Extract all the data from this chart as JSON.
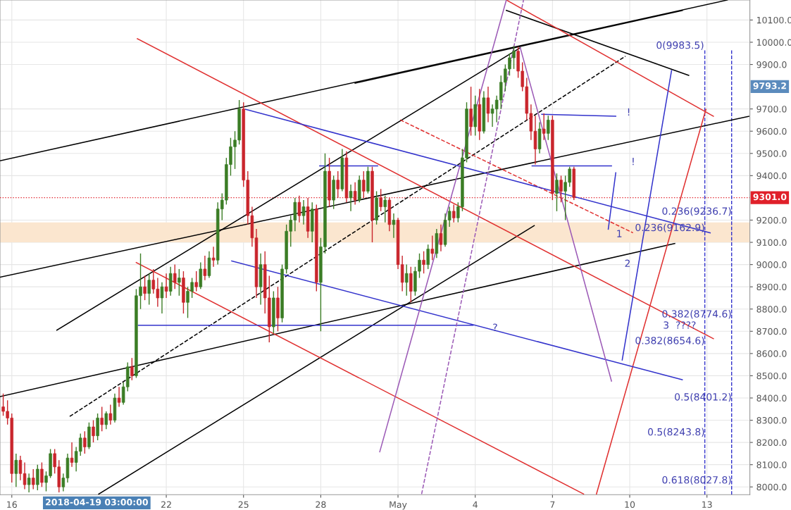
{
  "chart_data": {
    "type": "candlestick",
    "grid": true,
    "xlim": [
      "2018-04-15T13:00",
      "2018-05-14T16:00"
    ],
    "ylim": [
      7965,
      10190
    ],
    "xticks": [
      {
        "value": "2018-04-16",
        "label": "16"
      },
      {
        "value": "2018-04-22",
        "label": "22"
      },
      {
        "value": "2018-04-25",
        "label": "25"
      },
      {
        "value": "2018-04-28",
        "label": "28"
      },
      {
        "value": "2018-05-01",
        "label": "May"
      },
      {
        "value": "2018-05-04",
        "label": "4"
      },
      {
        "value": "2018-05-07",
        "label": "7"
      },
      {
        "value": "2018-05-10",
        "label": "10"
      },
      {
        "value": "2018-05-13",
        "label": "13"
      }
    ],
    "yticks": [
      {
        "value": 8000,
        "label": "8000.0"
      },
      {
        "value": 8100,
        "label": "8100.0"
      },
      {
        "value": 8200,
        "label": "8200.0"
      },
      {
        "value": 8300,
        "label": "8300.0"
      },
      {
        "value": 8400,
        "label": "8400.0"
      },
      {
        "value": 8500,
        "label": "8500.0"
      },
      {
        "value": 8600,
        "label": "8600.0"
      },
      {
        "value": 8700,
        "label": "8700.0"
      },
      {
        "value": 8800,
        "label": "8800.0"
      },
      {
        "value": 8900,
        "label": "8900.0"
      },
      {
        "value": 9000,
        "label": "9000.0"
      },
      {
        "value": 9100,
        "label": "9100.0"
      },
      {
        "value": 9200,
        "label": "9200.0"
      },
      {
        "value": 9400,
        "label": "9400.0"
      },
      {
        "value": 9500,
        "label": "9500.0"
      },
      {
        "value": 9600,
        "label": "9600.0"
      },
      {
        "value": 9700,
        "label": "9700.0"
      },
      {
        "value": 9900,
        "label": "9900.0"
      },
      {
        "value": 10000,
        "label": "10000.0"
      },
      {
        "value": 10100,
        "label": "10100.0"
      }
    ],
    "x": [
      "2018-04-15T16:00",
      "2018-04-15T20:00",
      "2018-04-16T00:00",
      "2018-04-16T04:00",
      "2018-04-16T08:00",
      "2018-04-16T12:00",
      "2018-04-16T16:00",
      "2018-04-16T20:00",
      "2018-04-17T00:00",
      "2018-04-17T04:00",
      "2018-04-17T08:00",
      "2018-04-17T12:00",
      "2018-04-17T16:00",
      "2018-04-17T20:00",
      "2018-04-18T00:00",
      "2018-04-18T04:00",
      "2018-04-18T08:00",
      "2018-04-18T12:00",
      "2018-04-18T16:00",
      "2018-04-18T20:00",
      "2018-04-19T00:00",
      "2018-04-19T04:00",
      "2018-04-19T08:00",
      "2018-04-19T12:00",
      "2018-04-19T16:00",
      "2018-04-19T20:00",
      "2018-04-20T00:00",
      "2018-04-20T04:00",
      "2018-04-20T08:00",
      "2018-04-20T12:00",
      "2018-04-20T16:00",
      "2018-04-20T20:00",
      "2018-04-21T00:00",
      "2018-04-21T04:00",
      "2018-04-21T08:00",
      "2018-04-21T12:00",
      "2018-04-21T16:00",
      "2018-04-21T20:00",
      "2018-04-22T00:00",
      "2018-04-22T04:00",
      "2018-04-22T08:00",
      "2018-04-22T12:00",
      "2018-04-22T16:00",
      "2018-04-22T20:00",
      "2018-04-23T00:00",
      "2018-04-23T04:00",
      "2018-04-23T08:00",
      "2018-04-23T12:00",
      "2018-04-23T16:00",
      "2018-04-23T20:00",
      "2018-04-24T00:00",
      "2018-04-24T04:00",
      "2018-04-24T08:00",
      "2018-04-24T12:00",
      "2018-04-24T16:00",
      "2018-04-24T20:00",
      "2018-04-25T00:00",
      "2018-04-25T04:00",
      "2018-04-25T08:00",
      "2018-04-25T12:00",
      "2018-04-25T16:00",
      "2018-04-25T20:00",
      "2018-04-26T00:00",
      "2018-04-26T04:00",
      "2018-04-26T08:00",
      "2018-04-26T12:00",
      "2018-04-26T16:00",
      "2018-04-26T20:00",
      "2018-04-27T00:00",
      "2018-04-27T04:00",
      "2018-04-27T08:00",
      "2018-04-27T12:00",
      "2018-04-27T16:00",
      "2018-04-27T20:00",
      "2018-04-28T00:00",
      "2018-04-28T04:00",
      "2018-04-28T08:00",
      "2018-04-28T12:00",
      "2018-04-28T16:00",
      "2018-04-28T20:00",
      "2018-04-29T00:00",
      "2018-04-29T04:00",
      "2018-04-29T08:00",
      "2018-04-29T12:00",
      "2018-04-29T16:00",
      "2018-04-29T20:00",
      "2018-04-30T00:00",
      "2018-04-30T04:00",
      "2018-04-30T08:00",
      "2018-04-30T12:00",
      "2018-04-30T16:00",
      "2018-04-30T20:00",
      "2018-05-01T00:00",
      "2018-05-01T04:00",
      "2018-05-01T08:00",
      "2018-05-01T12:00",
      "2018-05-01T16:00",
      "2018-05-01T20:00",
      "2018-05-02T00:00",
      "2018-05-02T04:00",
      "2018-05-02T08:00",
      "2018-05-02T12:00",
      "2018-05-02T16:00",
      "2018-05-02T20:00",
      "2018-05-03T00:00",
      "2018-05-03T04:00",
      "2018-05-03T08:00",
      "2018-05-03T12:00",
      "2018-05-03T16:00",
      "2018-05-03T20:00",
      "2018-05-04T00:00",
      "2018-05-04T04:00",
      "2018-05-04T08:00",
      "2018-05-04T12:00",
      "2018-05-04T16:00",
      "2018-05-04T20:00",
      "2018-05-05T00:00",
      "2018-05-05T04:00",
      "2018-05-05T08:00",
      "2018-05-05T12:00",
      "2018-05-05T16:00",
      "2018-05-05T20:00",
      "2018-05-06T00:00",
      "2018-05-06T04:00",
      "2018-05-06T08:00",
      "2018-05-06T12:00",
      "2018-05-06T16:00",
      "2018-05-06T20:00",
      "2018-05-07T00:00",
      "2018-05-07T04:00",
      "2018-05-07T08:00",
      "2018-05-07T12:00",
      "2018-05-07T16:00",
      "2018-05-07T20:00"
    ],
    "ohlc": [
      [
        8360,
        8420,
        8320,
        8340
      ],
      [
        8340,
        8390,
        8280,
        8310
      ],
      [
        8310,
        8330,
        8020,
        8060
      ],
      [
        8060,
        8150,
        8000,
        8120
      ],
      [
        8120,
        8140,
        8030,
        8060
      ],
      [
        8060,
        8110,
        7990,
        8010
      ],
      [
        8010,
        8060,
        7975,
        8040
      ],
      [
        8040,
        8080,
        7990,
        8010
      ],
      [
        8010,
        8100,
        7985,
        8080
      ],
      [
        8080,
        8110,
        8000,
        8020
      ],
      [
        8020,
        8070,
        7980,
        8050
      ],
      [
        8050,
        8170,
        8040,
        8150
      ],
      [
        8150,
        8170,
        8060,
        8090
      ],
      [
        8090,
        8120,
        7975,
        8000
      ],
      [
        8000,
        8060,
        7980,
        8040
      ],
      [
        8040,
        8150,
        8020,
        8130
      ],
      [
        8130,
        8200,
        8090,
        8110
      ],
      [
        8110,
        8180,
        8070,
        8160
      ],
      [
        8160,
        8240,
        8140,
        8220
      ],
      [
        8220,
        8250,
        8150,
        8180
      ],
      [
        8180,
        8290,
        8170,
        8270
      ],
      [
        8270,
        8300,
        8200,
        8230
      ],
      [
        8230,
        8330,
        8210,
        8310
      ],
      [
        8310,
        8360,
        8250,
        8280
      ],
      [
        8280,
        8340,
        8260,
        8330
      ],
      [
        8330,
        8370,
        8280,
        8300
      ],
      [
        8300,
        8420,
        8290,
        8400
      ],
      [
        8400,
        8450,
        8360,
        8380
      ],
      [
        8380,
        8470,
        8370,
        8450
      ],
      [
        8450,
        8560,
        8430,
        8540
      ],
      [
        8540,
        8580,
        8480,
        8500
      ],
      [
        8500,
        8890,
        8490,
        8860
      ],
      [
        8860,
        9050,
        8800,
        8900
      ],
      [
        8900,
        8950,
        8840,
        8870
      ],
      [
        8870,
        8960,
        8820,
        8930
      ],
      [
        8930,
        8980,
        8870,
        8890
      ],
      [
        8890,
        8940,
        8810,
        8850
      ],
      [
        8850,
        8920,
        8780,
        8900
      ],
      [
        8900,
        8960,
        8850,
        8880
      ],
      [
        8880,
        8990,
        8860,
        8960
      ],
      [
        8960,
        9000,
        8890,
        8920
      ],
      [
        8920,
        8980,
        8860,
        8940
      ],
      [
        8940,
        8970,
        8780,
        8830
      ],
      [
        8830,
        8900,
        8760,
        8880
      ],
      [
        8880,
        8940,
        8850,
        8920
      ],
      [
        8920,
        8970,
        8880,
        8900
      ],
      [
        8900,
        9010,
        8890,
        8980
      ],
      [
        8980,
        9040,
        8930,
        8950
      ],
      [
        8950,
        9060,
        8940,
        9030
      ],
      [
        9030,
        9080,
        8990,
        9020
      ],
      [
        9020,
        9280,
        9000,
        9250
      ],
      [
        9250,
        9320,
        9200,
        9290
      ],
      [
        9290,
        9480,
        9270,
        9450
      ],
      [
        9450,
        9570,
        9400,
        9530
      ],
      [
        9530,
        9600,
        9430,
        9560
      ],
      [
        9560,
        9740,
        9540,
        9700
      ],
      [
        9700,
        9730,
        9350,
        9380
      ],
      [
        9380,
        9420,
        9180,
        9220
      ],
      [
        9220,
        9260,
        9080,
        9120
      ],
      [
        9120,
        9160,
        8850,
        8900
      ],
      [
        8900,
        9050,
        8820,
        9000
      ],
      [
        9000,
        9060,
        8780,
        8850
      ],
      [
        8850,
        8950,
        8650,
        8720
      ],
      [
        8720,
        8880,
        8690,
        8850
      ],
      [
        8850,
        8900,
        8700,
        8760
      ],
      [
        8760,
        9000,
        8740,
        8980
      ],
      [
        8980,
        9180,
        8960,
        9150
      ],
      [
        9150,
        9220,
        9080,
        9200
      ],
      [
        9200,
        9300,
        9150,
        9280
      ],
      [
        9280,
        9310,
        9190,
        9220
      ],
      [
        9220,
        9290,
        9180,
        9260
      ],
      [
        9260,
        9300,
        9120,
        9150
      ],
      [
        9150,
        9280,
        9100,
        9250
      ],
      [
        9250,
        9270,
        8880,
        8920
      ],
      [
        8920,
        9120,
        8700,
        9080
      ],
      [
        9080,
        9500,
        9050,
        9420
      ],
      [
        9420,
        9480,
        9260,
        9290
      ],
      [
        9290,
        9400,
        9250,
        9380
      ],
      [
        9380,
        9420,
        9300,
        9340
      ],
      [
        9340,
        9520,
        9330,
        9480
      ],
      [
        9480,
        9510,
        9280,
        9300
      ],
      [
        9300,
        9360,
        9240,
        9330
      ],
      [
        9330,
        9370,
        9270,
        9290
      ],
      [
        9290,
        9400,
        9280,
        9380
      ],
      [
        9380,
        9420,
        9300,
        9330
      ],
      [
        9330,
        9440,
        9320,
        9420
      ],
      [
        9420,
        9440,
        9100,
        9200
      ],
      [
        9200,
        9330,
        9180,
        9300
      ],
      [
        9300,
        9340,
        9240,
        9260
      ],
      [
        9260,
        9310,
        9190,
        9290
      ],
      [
        9290,
        9300,
        9150,
        9180
      ],
      [
        9180,
        9230,
        9120,
        9200
      ],
      [
        9200,
        9210,
        8980,
        9000
      ],
      [
        9000,
        9040,
        8880,
        8920
      ],
      [
        8920,
        9000,
        8860,
        8960
      ],
      [
        8960,
        8990,
        8830,
        8880
      ],
      [
        8880,
        8990,
        8860,
        8970
      ],
      [
        8970,
        9050,
        8940,
        9020
      ],
      [
        9020,
        9060,
        8960,
        9000
      ],
      [
        9000,
        9090,
        8980,
        9070
      ],
      [
        9070,
        9130,
        9020,
        9050
      ],
      [
        9050,
        9160,
        9030,
        9140
      ],
      [
        9140,
        9180,
        9060,
        9090
      ],
      [
        9090,
        9230,
        9080,
        9200
      ],
      [
        9200,
        9260,
        9170,
        9240
      ],
      [
        9240,
        9270,
        9190,
        9210
      ],
      [
        9210,
        9280,
        9190,
        9260
      ],
      [
        9260,
        9520,
        9240,
        9480
      ],
      [
        9480,
        9730,
        9460,
        9700
      ],
      [
        9700,
        9800,
        9580,
        9620
      ],
      [
        9620,
        9760,
        9580,
        9720
      ],
      [
        9720,
        9790,
        9560,
        9600
      ],
      [
        9600,
        9780,
        9590,
        9750
      ],
      [
        9750,
        9800,
        9640,
        9680
      ],
      [
        9680,
        9720,
        9620,
        9700
      ],
      [
        9700,
        9760,
        9640,
        9740
      ],
      [
        9740,
        9850,
        9700,
        9820
      ],
      [
        9820,
        9900,
        9780,
        9880
      ],
      [
        9880,
        9950,
        9850,
        9930
      ],
      [
        9930,
        9983.5,
        9880,
        9960
      ],
      [
        9960,
        9980,
        9840,
        9870
      ],
      [
        9870,
        9910,
        9780,
        9800
      ],
      [
        9800,
        9840,
        9650,
        9680
      ],
      [
        9680,
        9720,
        9560,
        9600
      ],
      [
        9600,
        9670,
        9450,
        9520
      ],
      [
        9520,
        9640,
        9500,
        9610
      ],
      [
        9610,
        9680,
        9560,
        9590
      ],
      [
        9590,
        9670,
        9560,
        9650
      ],
      [
        9650,
        9670,
        9290,
        9320
      ],
      [
        9320,
        9410,
        9240,
        9380
      ],
      [
        9380,
        9400,
        9280,
        9330
      ],
      [
        9330,
        9400,
        9200,
        9370
      ],
      [
        9370,
        9440,
        9350,
        9430
      ],
      [
        9430,
        9440,
        9290,
        9301
      ]
    ],
    "series": [
      {
        "type": "line",
        "x": [
          "2018-04-19T09:00",
          "2018-05-06T07:00"
        ],
        "values": [
          7968,
          9175
        ],
        "color": "#000000"
      },
      {
        "type": "line",
        "x": [
          "2018-04-17T18:00",
          "2018-05-05T18:00"
        ],
        "values": [
          8705,
          9975
        ],
        "color": "#000000"
      },
      {
        "type": "line",
        "x": [
          "2018-04-29T08:00",
          "2018-05-12T01:00"
        ],
        "values": [
          9816,
          10143
        ],
        "color": "#000000"
      },
      {
        "type": "line",
        "x": [
          "2018-05-05T05:00",
          "2018-05-12T07:00"
        ],
        "values": [
          10143,
          9851
        ],
        "color": "#000000"
      },
      {
        "type": "line",
        "x": [
          "2018-04-15T13:00",
          "2018-05-13T19:00"
        ],
        "values": [
          9467,
          10190
        ],
        "color": "#000000"
      },
      {
        "type": "line",
        "x": [
          "2018-04-15T13:00",
          "2018-05-14T15:00"
        ],
        "values": [
          8943,
          9667
        ],
        "color": "#000000"
      },
      {
        "type": "line",
        "x": [
          "2018-04-15T13:00",
          "2018-05-11T18:00"
        ],
        "values": [
          8406,
          9095
        ],
        "color": "#000000"
      },
      {
        "type": "line",
        "x": [
          "2018-04-18T06:00",
          "2018-05-09T20:00"
        ],
        "values": [
          8317,
          9937
        ],
        "color": "#000000",
        "line_style": "dashed"
      },
      {
        "type": "line",
        "x": [
          "2018-04-20T21:00",
          "2018-05-13T06:00"
        ],
        "values": [
          10016,
          8667
        ],
        "color": "#e03030"
      },
      {
        "type": "line",
        "x": [
          "2018-04-20T20:00",
          "2018-05-08T05:00"
        ],
        "values": [
          9009,
          7968
        ],
        "color": "#e03030"
      },
      {
        "type": "line",
        "x": [
          "2018-05-05T05:00",
          "2018-05-13T06:00"
        ],
        "values": [
          10190,
          9667
        ],
        "color": "#e03030"
      },
      {
        "type": "line",
        "x": [
          "2018-05-08T17:00",
          "2018-05-12T23:00"
        ],
        "values": [
          7968,
          9698
        ],
        "color": "#e03030"
      },
      {
        "type": "line",
        "x": [
          "2018-05-01T02:00",
          "2018-05-10T03:00"
        ],
        "values": [
          9651,
          9143
        ],
        "color": "#e03030",
        "line_style": "dashed"
      },
      {
        "type": "line",
        "x": [
          "2018-04-25T02:00",
          "2018-05-13T03:00"
        ],
        "values": [
          9698,
          9143
        ],
        "color": "#3333cc"
      },
      {
        "type": "line",
        "x": [
          "2018-04-24T13:00",
          "2018-05-12T01:00"
        ],
        "values": [
          9016,
          8482
        ],
        "color": "#3333cc"
      },
      {
        "type": "line",
        "x": [
          "2018-04-20T22:00",
          "2018-05-03T22:00"
        ],
        "values": [
          8727,
          8727
        ],
        "color": "#3333cc"
      },
      {
        "type": "line",
        "x": [
          "2018-04-27T23:00",
          "2018-04-30T05:00"
        ],
        "values": [
          9444,
          9444
        ],
        "color": "#3333cc"
      },
      {
        "type": "line",
        "x": [
          "2018-05-06T14:00",
          "2018-05-09T11:00"
        ],
        "values": [
          9676,
          9667
        ],
        "color": "#3333cc"
      },
      {
        "type": "line",
        "x": [
          "2018-05-06T05:00",
          "2018-05-09T07:00"
        ],
        "values": [
          9444,
          9444
        ],
        "color": "#3333cc"
      },
      {
        "type": "line",
        "x": [
          "2018-05-09T17:00",
          "2018-05-11T15:00"
        ],
        "values": [
          8571,
          9873
        ],
        "color": "#3333cc"
      },
      {
        "type": "line",
        "x": [
          "2018-05-09T04:00",
          "2018-05-09T11:00"
        ],
        "values": [
          9159,
          9413
        ],
        "color": "#3333cc"
      },
      {
        "type": "line",
        "x": [
          "2018-04-30T07:00",
          "2018-05-05T05:00"
        ],
        "values": [
          8158,
          10190
        ],
        "color": "#9b59b6"
      },
      {
        "type": "line",
        "x": [
          "2018-05-05T18:00",
          "2018-05-09T07:00"
        ],
        "values": [
          9975,
          8476
        ],
        "color": "#9b59b6"
      },
      {
        "type": "line",
        "x": [
          "2018-05-01T22:00",
          "2018-05-05T21:00"
        ],
        "values": [
          7968,
          10190
        ],
        "color": "#9b59b6",
        "line_style": "dashed"
      }
    ],
    "bands": [
      {
        "axis": "y",
        "from": 9100,
        "to": 9190,
        "color": "#fbe6cf"
      }
    ],
    "ref_lines": [
      {
        "axis": "y",
        "value": 9301.0,
        "label": "9301.0",
        "color": "#e0202a",
        "line_style": "dotted"
      },
      {
        "axis": "x",
        "value": "2018-05-12T22:00",
        "color": "#3333cc",
        "line_style": "dashed"
      },
      {
        "axis": "x",
        "value": "2018-05-13T23:00",
        "color": "#3333cc",
        "line_style": "dashed"
      }
    ],
    "annotations": [
      {
        "text": "0.236(9236.7)",
        "x": "2018-05-13T23:00",
        "y": 9236.7
      },
      {
        "text": "0.236(9162.9)",
        "x": "2018-05-12T22:00",
        "y": 9162.9
      },
      {
        "text": "0.382(8774.6)",
        "x": "2018-05-13T23:00",
        "y": 8774.6
      },
      {
        "text": "0.382(8654.6)",
        "x": "2018-05-12T22:00",
        "y": 8654.6
      },
      {
        "text": "0.5(8401.2)",
        "x": "2018-05-13T23:00",
        "y": 8401.2
      },
      {
        "text": "0.5(8243.8)",
        "x": "2018-05-12T22:00",
        "y": 8243.8
      },
      {
        "text": "0.618(8027.8)",
        "x": "2018-05-13T23:00",
        "y": 8027.8
      },
      {
        "text": "3  ????",
        "x": "2018-05-12T14:00",
        "y": 8724
      },
      {
        "text": "?",
        "x": "2018-05-04T21:00",
        "y": 8714
      },
      "0(9983.5)",
      "1",
      "2",
      "!",
      "!",
      "2018-04-19 03:00:00",
      "9793.2"
    ]
  }
}
